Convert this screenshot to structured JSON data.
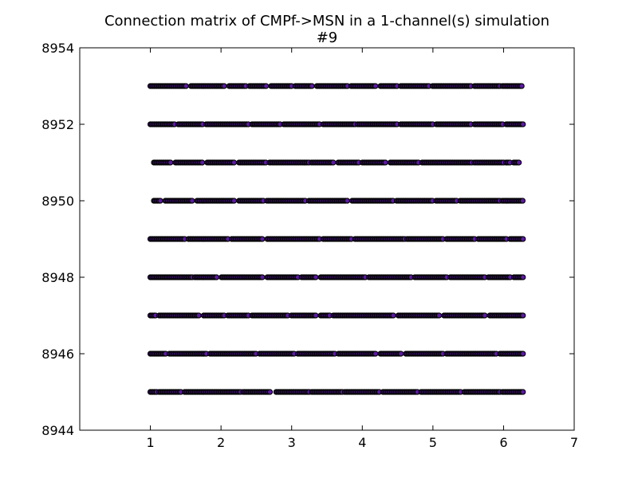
{
  "chart_data": {
    "type": "scatter",
    "title_line1": "Connection matrix of CMPf->MSN in a 1-channel(s) simulation",
    "title_line2": "#9",
    "xlabel": "",
    "ylabel": "",
    "xlim": [
      0,
      7
    ],
    "ylim": [
      8944,
      8954
    ],
    "x_ticks": [
      1,
      2,
      3,
      4,
      5,
      6,
      7
    ],
    "y_ticks": [
      8944,
      8946,
      8948,
      8950,
      8952,
      8954
    ],
    "grid": false,
    "legend": "none",
    "marker_fill": "#5a1a9e",
    "marker_edge": "#000000",
    "rows": [
      {
        "y": 8945,
        "x_min": 1.0,
        "x_max": 6.28,
        "gaps": [
          [
            1.1,
            1.12
          ],
          [
            1.45,
            1.48
          ],
          [
            2.28,
            2.3
          ],
          [
            2.7,
            2.78
          ],
          [
            3.25,
            3.28
          ],
          [
            3.72,
            3.75
          ],
          [
            4.25,
            4.28
          ],
          [
            4.78,
            4.82
          ],
          [
            5.4,
            5.43
          ],
          [
            5.95,
            5.98
          ]
        ]
      },
      {
        "y": 8946,
        "x_min": 1.0,
        "x_max": 6.28,
        "gaps": [
          [
            1.22,
            1.26
          ],
          [
            1.8,
            1.83
          ],
          [
            2.5,
            2.53
          ],
          [
            3.05,
            3.08
          ],
          [
            3.62,
            3.66
          ],
          [
            4.2,
            4.24
          ],
          [
            4.55,
            4.6
          ],
          [
            5.15,
            5.18
          ],
          [
            5.9,
            5.94
          ]
        ]
      },
      {
        "y": 8947,
        "x_min": 1.0,
        "x_max": 6.28,
        "gaps": [
          [
            1.08,
            1.12
          ],
          [
            1.7,
            1.75
          ],
          [
            2.05,
            2.08
          ],
          [
            2.4,
            2.43
          ],
          [
            2.95,
            2.98
          ],
          [
            3.35,
            3.4
          ],
          [
            3.55,
            3.58
          ],
          [
            4.45,
            4.5
          ],
          [
            5.1,
            5.14
          ],
          [
            5.75,
            5.8
          ]
        ]
      },
      {
        "y": 8948,
        "x_min": 1.0,
        "x_max": 6.28,
        "gaps": [
          [
            1.6,
            1.63
          ],
          [
            1.95,
            2.0
          ],
          [
            2.6,
            2.64
          ],
          [
            3.1,
            3.14
          ],
          [
            3.35,
            3.4
          ],
          [
            4.05,
            4.08
          ],
          [
            4.7,
            4.73
          ],
          [
            5.2,
            5.24
          ],
          [
            5.75,
            5.78
          ],
          [
            6.1,
            6.14
          ]
        ]
      },
      {
        "y": 8949,
        "x_min": 1.0,
        "x_max": 6.28,
        "gaps": [
          [
            1.5,
            1.53
          ],
          [
            2.1,
            2.14
          ],
          [
            2.6,
            2.64
          ],
          [
            3.4,
            3.43
          ],
          [
            3.85,
            3.88
          ],
          [
            4.6,
            4.63
          ],
          [
            5.15,
            5.18
          ],
          [
            5.6,
            5.63
          ],
          [
            6.05,
            6.08
          ]
        ]
      },
      {
        "y": 8950,
        "x_min": 1.05,
        "x_max": 6.28,
        "gaps": [
          [
            1.15,
            1.2
          ],
          [
            1.6,
            1.65
          ],
          [
            2.2,
            2.24
          ],
          [
            2.6,
            2.65
          ],
          [
            3.2,
            3.24
          ],
          [
            3.8,
            3.84
          ],
          [
            4.45,
            4.48
          ],
          [
            5.0,
            5.03
          ],
          [
            5.35,
            5.38
          ],
          [
            5.95,
            5.98
          ]
        ]
      },
      {
        "y": 8951,
        "x_min": 1.05,
        "x_max": 6.22,
        "gaps": [
          [
            1.3,
            1.35
          ],
          [
            1.75,
            1.79
          ],
          [
            2.2,
            2.24
          ],
          [
            2.65,
            2.68
          ],
          [
            3.25,
            3.28
          ],
          [
            3.6,
            3.65
          ],
          [
            3.95,
            3.99
          ],
          [
            4.33,
            4.38
          ],
          [
            4.8,
            4.84
          ],
          [
            5.55,
            5.58
          ],
          [
            6.0,
            6.03
          ],
          [
            6.1,
            6.14
          ]
        ]
      },
      {
        "y": 8952,
        "x_min": 1.0,
        "x_max": 6.28,
        "gaps": [
          [
            1.35,
            1.38
          ],
          [
            1.75,
            1.78
          ],
          [
            2.4,
            2.43
          ],
          [
            2.85,
            2.88
          ],
          [
            3.4,
            3.44
          ],
          [
            3.9,
            3.93
          ],
          [
            4.5,
            4.54
          ],
          [
            5.0,
            5.04
          ],
          [
            5.55,
            5.58
          ],
          [
            6.0,
            6.03
          ]
        ]
      },
      {
        "y": 8953,
        "x_min": 1.0,
        "x_max": 6.26,
        "gaps": [
          [
            1.52,
            1.56
          ],
          [
            2.05,
            2.1
          ],
          [
            2.35,
            2.4
          ],
          [
            2.65,
            2.7
          ],
          [
            3.0,
            3.04
          ],
          [
            3.3,
            3.34
          ],
          [
            3.8,
            3.84
          ],
          [
            4.2,
            4.24
          ],
          [
            4.5,
            4.53
          ],
          [
            4.95,
            4.98
          ],
          [
            5.55,
            5.58
          ],
          [
            5.95,
            5.98
          ]
        ]
      }
    ]
  }
}
